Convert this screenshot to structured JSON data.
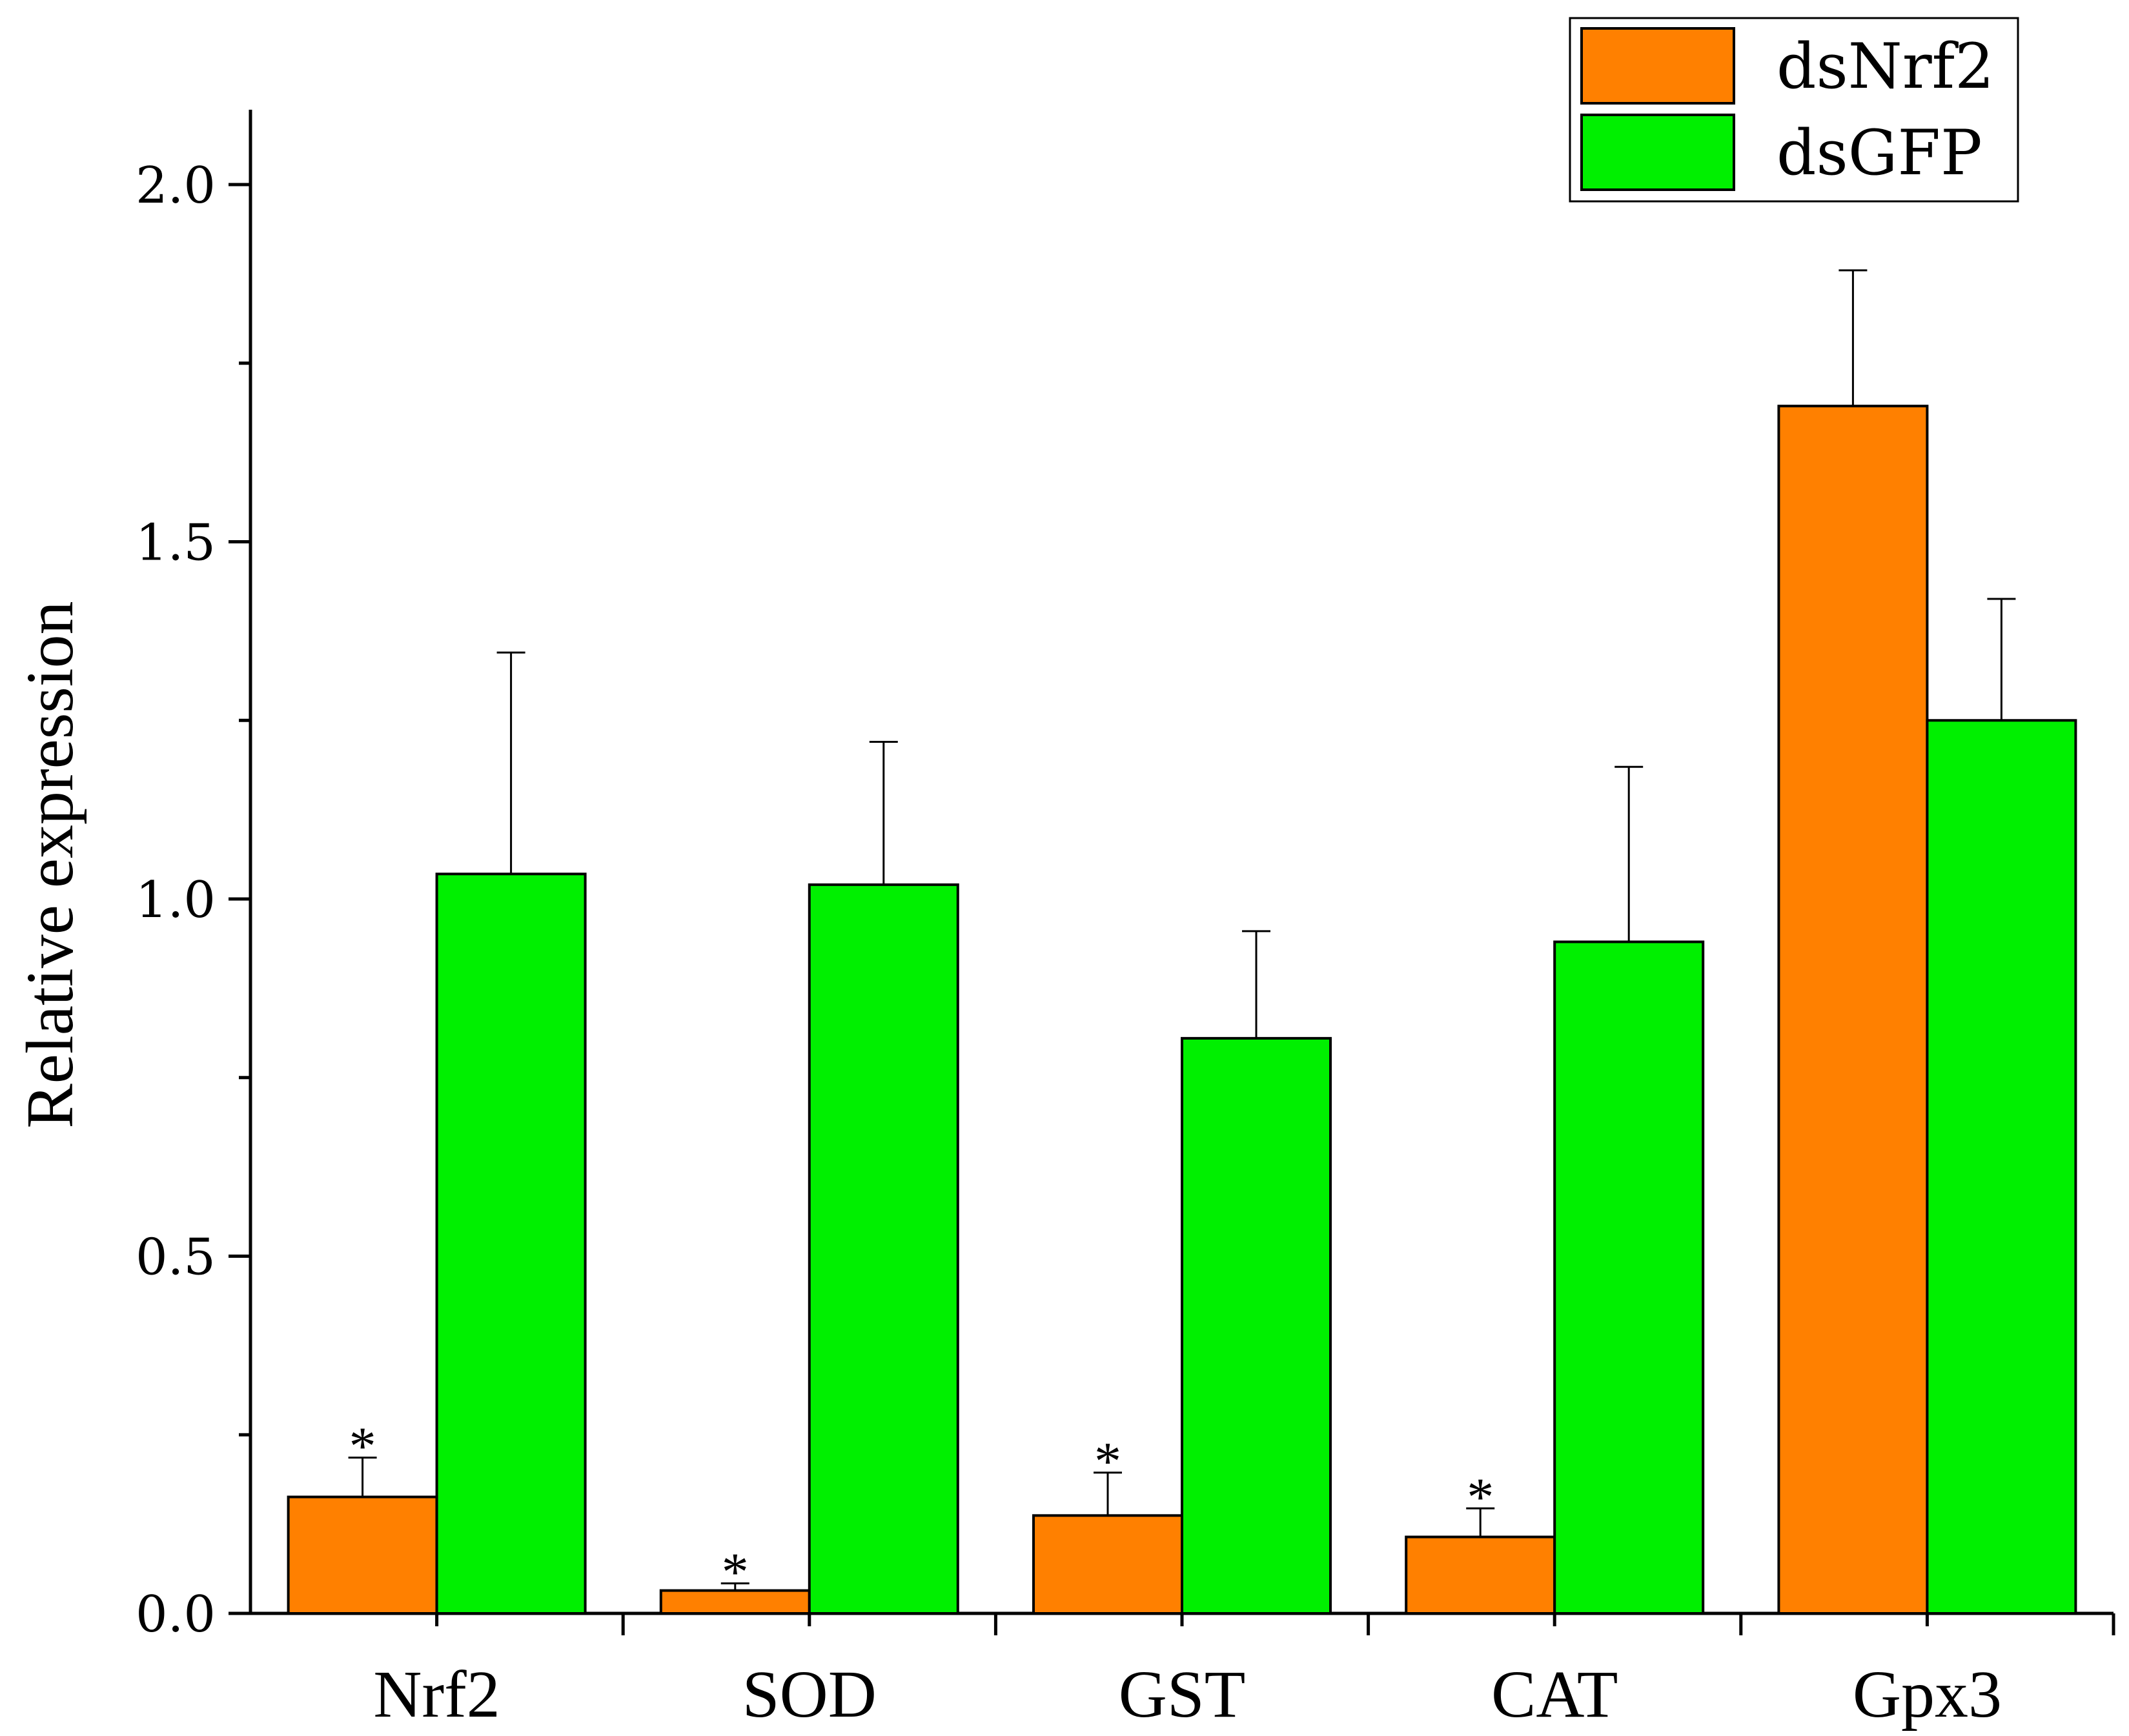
{
  "chart_data": {
    "type": "bar",
    "title": "",
    "xlabel": "",
    "ylabel": "Relative expression",
    "ylim": [
      0.0,
      2.1
    ],
    "yticks": [
      0.0,
      0.5,
      1.0,
      1.5,
      2.0
    ],
    "ytick_labels": [
      "0.0",
      "0.5",
      "1.0",
      "1.5",
      "2.0"
    ],
    "categories": [
      "Nrf2",
      "SOD",
      "GST",
      "CAT",
      "Gpx3"
    ],
    "series": [
      {
        "name": "dsNrf2",
        "color": "#FF8000",
        "values": [
          0.163,
          0.032,
          0.137,
          0.107,
          1.69
        ],
        "errors": [
          0.055,
          0.01,
          0.06,
          0.04,
          0.19
        ],
        "significance": [
          "*",
          "*",
          "*",
          "*",
          ""
        ]
      },
      {
        "name": "dsGFP",
        "color": "#00F000",
        "values": [
          1.035,
          1.02,
          0.805,
          0.94,
          1.25
        ],
        "errors": [
          0.31,
          0.2,
          0.15,
          0.245,
          0.17
        ],
        "significance": [
          "",
          "",
          "",
          "",
          ""
        ]
      }
    ],
    "legend": {
      "position": "top-right",
      "entries": [
        "dsNrf2",
        "dsGFP"
      ]
    },
    "grid": false
  }
}
